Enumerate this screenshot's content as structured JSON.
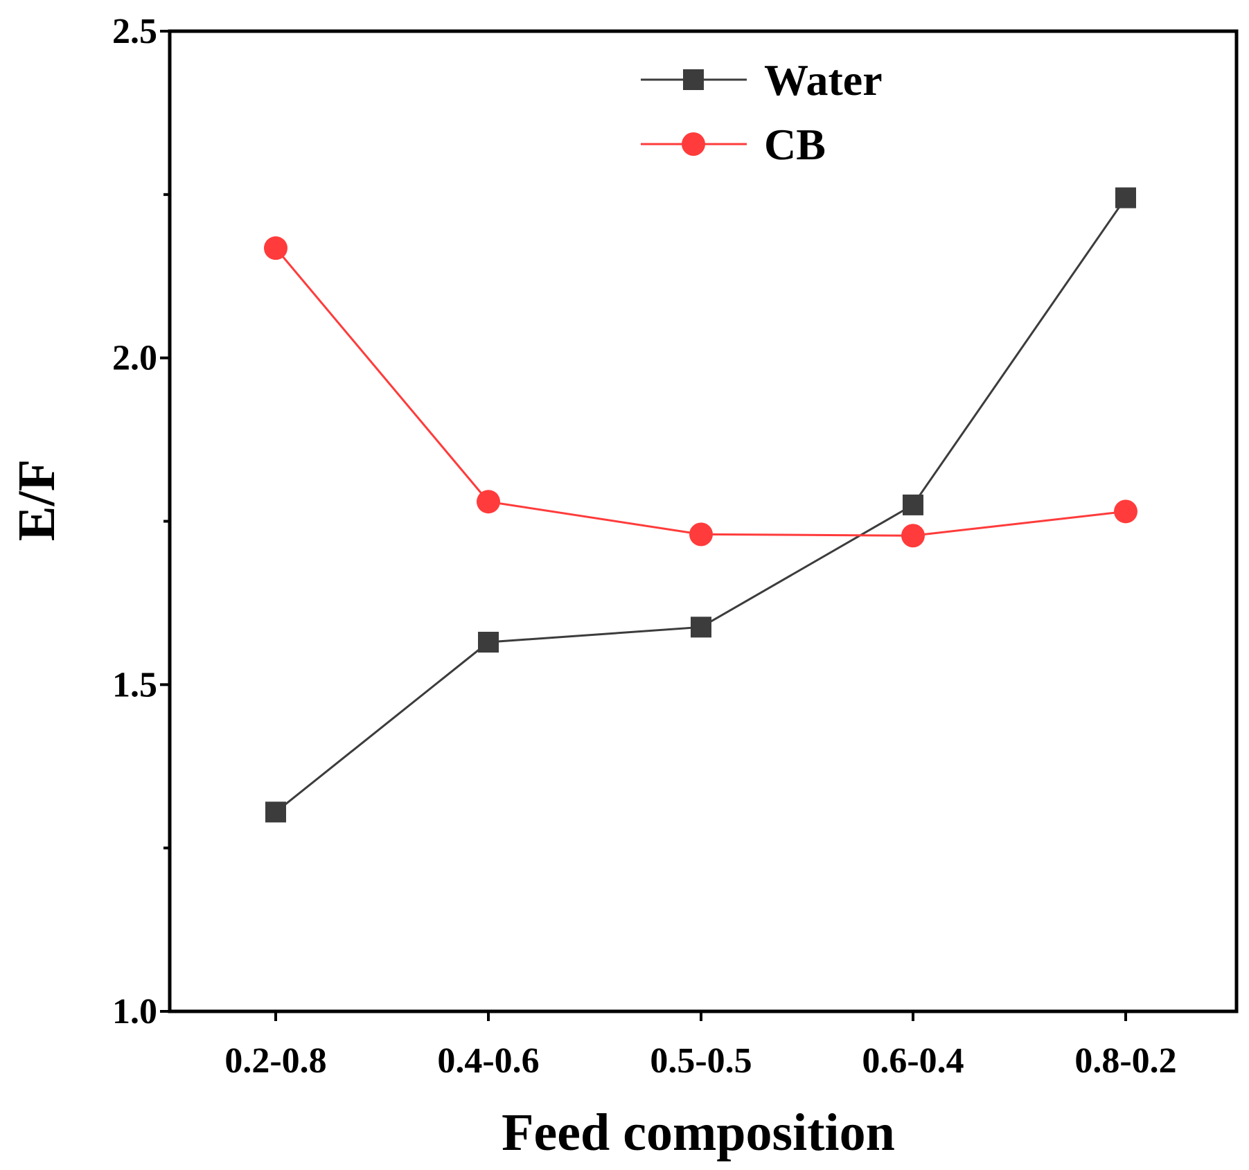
{
  "chart_data": {
    "type": "line",
    "title": "",
    "xlabel": "Feed composition",
    "ylabel": "E/F",
    "categories": [
      "0.2-0.8",
      "0.4-0.6",
      "0.5-0.5",
      "0.6-0.4",
      "0.8-0.2"
    ],
    "ylim": [
      1.0,
      2.5
    ],
    "yticks": [
      1.0,
      1.5,
      2.0,
      2.5
    ],
    "ytick_labels": [
      "1.0",
      "1.5",
      "2.0",
      "2.5"
    ],
    "grid": false,
    "legend_position": "top-center",
    "series": [
      {
        "name": "Water",
        "marker": "square",
        "color": "#3c3c3c",
        "values": [
          1.305,
          1.565,
          1.588,
          1.775,
          2.245
        ]
      },
      {
        "name": "CB",
        "marker": "circle",
        "color": "#ff3b3b",
        "values": [
          2.168,
          1.78,
          1.73,
          1.728,
          1.765
        ]
      }
    ]
  }
}
